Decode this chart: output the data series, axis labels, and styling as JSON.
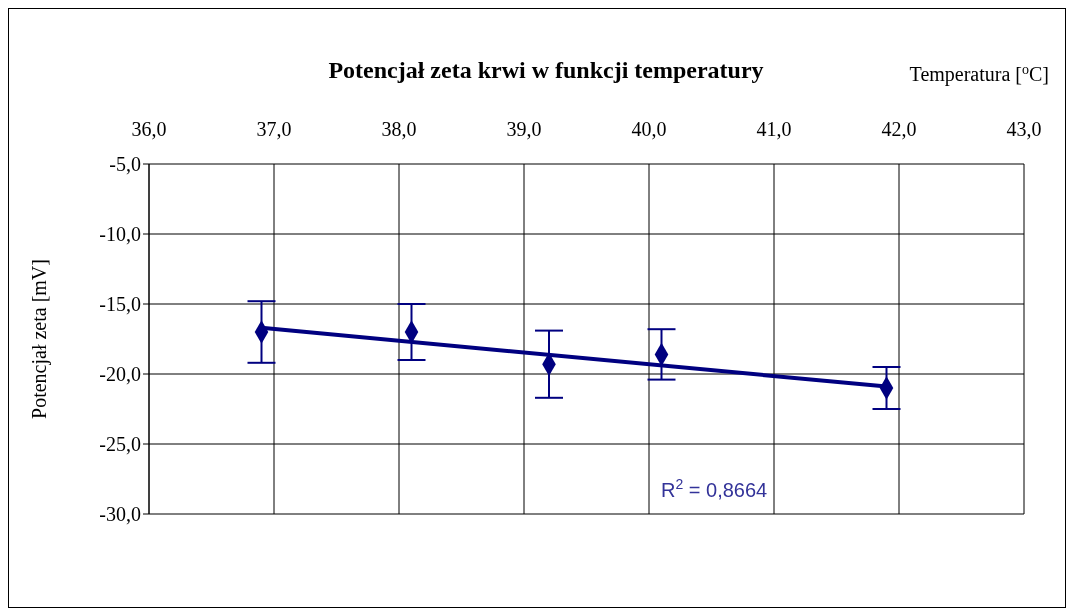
{
  "chart_data": {
    "type": "scatter",
    "title": "Potencjał zeta krwi w funkcji temperatury",
    "xlabel": "Temperatura [$^{o}$C]",
    "ylabel": "Potencjał zeta [mV]",
    "series": [
      {
        "color": "#000080",
        "x": [
          36.9,
          38.1,
          39.2,
          40.1,
          41.9
        ],
        "values": [
          -17.0,
          -17.0,
          -19.3,
          -18.6,
          -21.0
        ],
        "errors": [
          2.2,
          2.0,
          2.4,
          1.8,
          1.5
        ],
        "marker": "diamond"
      },
      {
        "type": "line",
        "color": "#000080",
        "x": [
          36.9,
          41.9
        ],
        "values": [
          -16.7,
          -20.9
        ],
        "line_style": "solid",
        "marker": "none"
      }
    ],
    "xlim": [
      36,
      43
    ],
    "xticks": [
      {
        "value": 36,
        "label": "36,0"
      },
      {
        "value": 37,
        "label": "37,0"
      },
      {
        "value": 38,
        "label": "38,0"
      },
      {
        "value": 39,
        "label": "39,0"
      },
      {
        "value": 40,
        "label": "40,0"
      },
      {
        "value": 41,
        "label": "41,0"
      },
      {
        "value": 42,
        "label": "42,0"
      },
      {
        "value": 43,
        "label": "43,0"
      }
    ],
    "ylim": [
      -30,
      -5
    ],
    "yticks": [
      {
        "value": -30,
        "label": "-30,0"
      },
      {
        "value": -25,
        "label": "-25,0"
      },
      {
        "value": -20,
        "label": "-20,0"
      },
      {
        "value": -15,
        "label": "-15,0"
      },
      {
        "value": -10,
        "label": "-10,0"
      },
      {
        "value": -5,
        "label": "-5,0"
      }
    ],
    "grid": true,
    "annotations": [
      "R$^{2}$ = 0,8664"
    ]
  }
}
